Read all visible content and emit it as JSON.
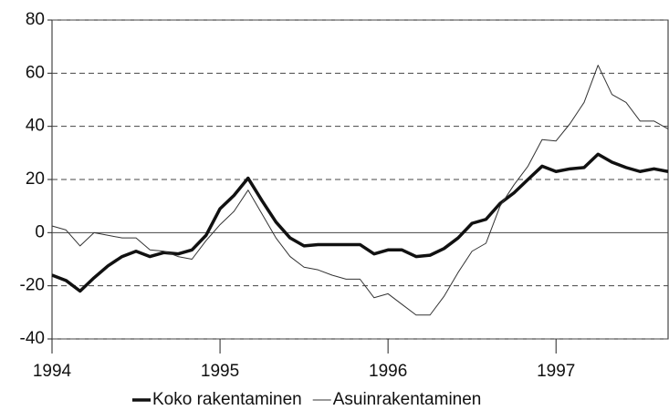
{
  "chart_data": {
    "type": "line",
    "x": [
      1994,
      1994.083,
      1994.167,
      1994.25,
      1994.333,
      1994.417,
      1994.5,
      1994.583,
      1994.667,
      1994.75,
      1994.833,
      1994.917,
      1995,
      1995.083,
      1995.167,
      1995.25,
      1995.333,
      1995.417,
      1995.5,
      1995.583,
      1995.667,
      1995.75,
      1995.833,
      1995.917,
      1996,
      1996.083,
      1996.167,
      1996.25,
      1996.333,
      1996.417,
      1996.5,
      1996.583,
      1996.667,
      1996.75,
      1996.833,
      1996.917,
      1997,
      1997.083,
      1997.167,
      1997.25,
      1997.333,
      1997.417,
      1997.5,
      1997.583,
      1997.667
    ],
    "series": [
      {
        "name": "Koko rakentaminen",
        "color": "#111111",
        "width": 3.5,
        "values": [
          -16,
          -18,
          -22,
          -17,
          -12.5,
          -9,
          -7,
          -9,
          -7.5,
          -8,
          -6.5,
          -1,
          9,
          14,
          20.5,
          12,
          4,
          -2,
          -5,
          -4.5,
          -4.5,
          -4.5,
          -4.5,
          -8,
          -6.5,
          -6.5,
          -9,
          -8.5,
          -6,
          -2,
          3.5,
          5,
          11,
          15,
          20,
          25,
          23,
          24,
          24.5,
          29.5,
          26.5,
          24.5,
          23,
          24,
          23
        ]
      },
      {
        "name": "Asuinrakentaminen",
        "color": "#333333",
        "width": 1,
        "values": [
          2.5,
          1,
          -5,
          0,
          -1,
          -2,
          -2,
          -6.5,
          -7,
          -9,
          -10,
          -3,
          3,
          8,
          16,
          7,
          -2,
          -9,
          -13,
          -14,
          -16,
          -17.5,
          -17.5,
          -24.5,
          -23,
          -27,
          -31,
          -31,
          -24,
          -15,
          -7,
          -4,
          10,
          18,
          25,
          35,
          34.5,
          41,
          49,
          63,
          52,
          49,
          42,
          42,
          39
        ]
      }
    ],
    "xlim": [
      1994,
      1997.667
    ],
    "xticks": [
      1994,
      1995,
      1996,
      1997
    ],
    "ylim": [
      -40,
      80
    ],
    "yticks": [
      -40,
      -20,
      0,
      20,
      40,
      60,
      80
    ],
    "grid": true,
    "legend": "bottom"
  }
}
